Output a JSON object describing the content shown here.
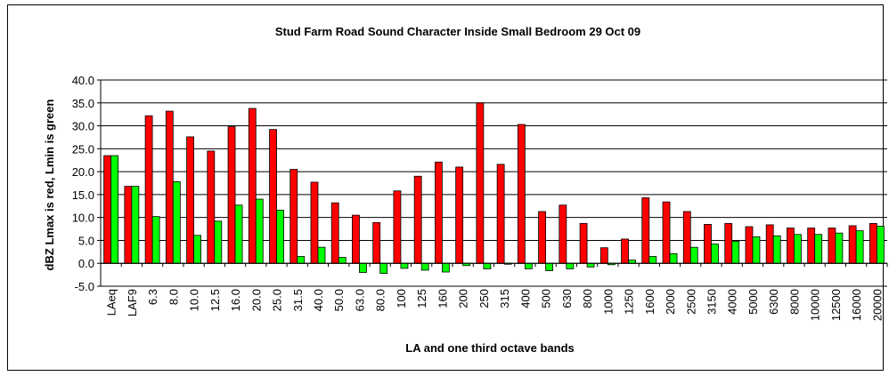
{
  "chart_data": {
    "type": "bar",
    "title": "Stud Farm Road Sound Character Inside Small Bedroom 29 Oct 09",
    "xlabel": "LA and one third octave bands",
    "ylabel": "dBZ Lmax is red, Lmin is green",
    "ylim": [
      -5.0,
      40.0
    ],
    "yticks": [
      "40.0",
      "35.0",
      "30.0",
      "25.0",
      "20.0",
      "15.0",
      "10.0",
      "5.0",
      "0.0",
      "-5.0"
    ],
    "grid": true,
    "legend": "none",
    "categories": [
      "LAeq",
      "LAF9",
      "6.3",
      "8.0",
      "10.0",
      "12.5",
      "16.0",
      "20.0",
      "25.0",
      "31.5",
      "40.0",
      "50.0",
      "63.0",
      "80.0",
      "100",
      "125",
      "160",
      "200",
      "250",
      "315",
      "400",
      "500",
      "630",
      "800",
      "1000",
      "1250",
      "1600",
      "2000",
      "2500",
      "3150",
      "4000",
      "5000",
      "6300",
      "8000",
      "10000",
      "12500",
      "16000",
      "20000"
    ],
    "series": [
      {
        "color": "#ff0000",
        "values": [
          23.5,
          16.8,
          32.2,
          33.2,
          27.6,
          24.5,
          29.8,
          33.8,
          29.2,
          20.5,
          17.7,
          13.2,
          10.5,
          8.9,
          15.8,
          19.0,
          22.1,
          21.0,
          35.0,
          21.6,
          30.3,
          11.3,
          12.7,
          8.7,
          3.4,
          5.3,
          14.3,
          13.4,
          11.3,
          8.5,
          8.7,
          8.0,
          8.4,
          7.7,
          7.7,
          7.7,
          8.2,
          8.7
        ]
      },
      {
        "color": "#00ff00",
        "values": [
          23.5,
          16.8,
          10.2,
          17.8,
          6.1,
          9.2,
          12.7,
          14.0,
          11.6,
          1.5,
          3.5,
          1.3,
          -2.0,
          -2.2,
          -1.1,
          -1.5,
          -1.9,
          -0.5,
          -1.2,
          -0.2,
          -1.2,
          -1.6,
          -1.2,
          -0.8,
          -0.3,
          0.7,
          1.5,
          2.1,
          3.5,
          4.2,
          4.8,
          5.8,
          6.0,
          6.3,
          6.3,
          6.6,
          7.1,
          8.1
        ]
      }
    ]
  }
}
